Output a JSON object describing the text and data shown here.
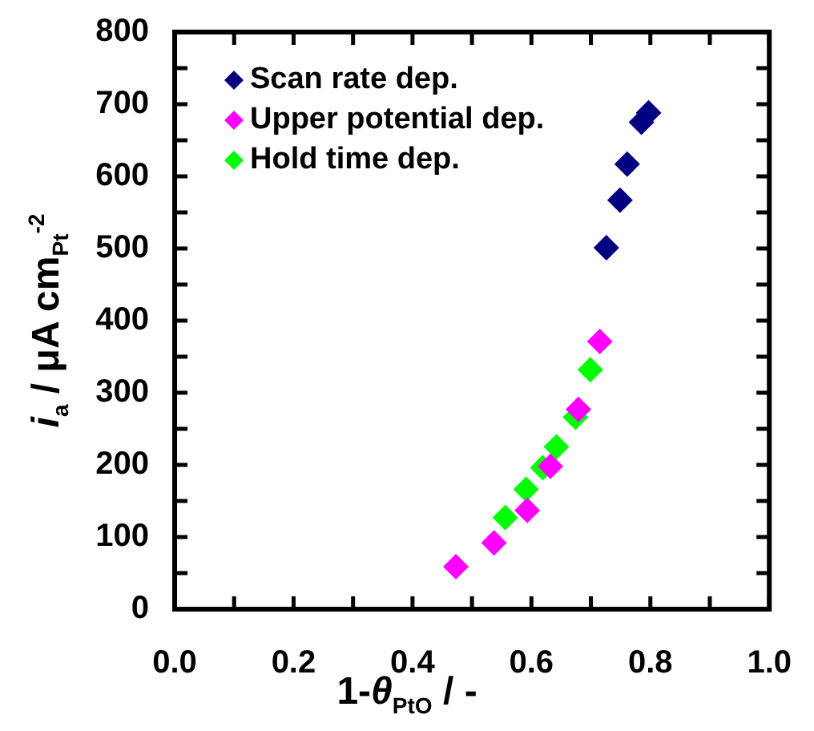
{
  "chart_data": {
    "type": "scatter",
    "xlabel": "1-θ$_{PtO}$ / -",
    "ylabel": "i$_{a}$ / μA cm$_{Pt}$$^{-2}$",
    "xlim": [
      0,
      1
    ],
    "ylim": [
      0,
      800
    ],
    "xticks": [
      {
        "value": 0,
        "label": "0.0"
      },
      {
        "value": 0.1,
        "label": null
      },
      {
        "value": 0.2,
        "label": "0.2"
      },
      {
        "value": 0.3,
        "label": null
      },
      {
        "value": 0.4,
        "label": "0.4"
      },
      {
        "value": 0.5,
        "label": null
      },
      {
        "value": 0.6,
        "label": "0.6"
      },
      {
        "value": 0.7,
        "label": null
      },
      {
        "value": 0.8,
        "label": "0.8"
      },
      {
        "value": 0.9,
        "label": null
      },
      {
        "value": 1,
        "label": "1.0"
      }
    ],
    "yticks": [
      0,
      {
        "value": 50,
        "label": null
      },
      100,
      {
        "value": 150,
        "label": null
      },
      200,
      {
        "value": 250,
        "label": null
      },
      300,
      {
        "value": 350,
        "label": null
      },
      400,
      {
        "value": 450,
        "label": null
      },
      500,
      {
        "value": 550,
        "label": null
      },
      600,
      {
        "value": 650,
        "label": null
      },
      700,
      {
        "value": 750,
        "label": null
      },
      800
    ],
    "grid": false,
    "legend": "top left",
    "marker": "diamond",
    "series": [
      {
        "name": "Scan rate dep.",
        "color": "#000080",
        "x": [
          0.726,
          0.749,
          0.761,
          0.785,
          0.797
        ],
        "values": [
          501,
          567,
          617,
          675,
          688
        ]
      },
      {
        "name": "Upper potential dep.",
        "color": "#ff00ff",
        "x": [
          0.473,
          0.537,
          0.593,
          0.632,
          0.679,
          0.715
        ],
        "values": [
          59,
          92,
          137,
          198,
          277,
          371
        ]
      },
      {
        "name": "Hold time dep.",
        "color": "#00ff00",
        "x": [
          0.556,
          0.591,
          0.619,
          0.642,
          0.674,
          0.699
        ],
        "values": [
          127,
          166,
          196,
          225,
          266,
          332
        ]
      }
    ]
  }
}
